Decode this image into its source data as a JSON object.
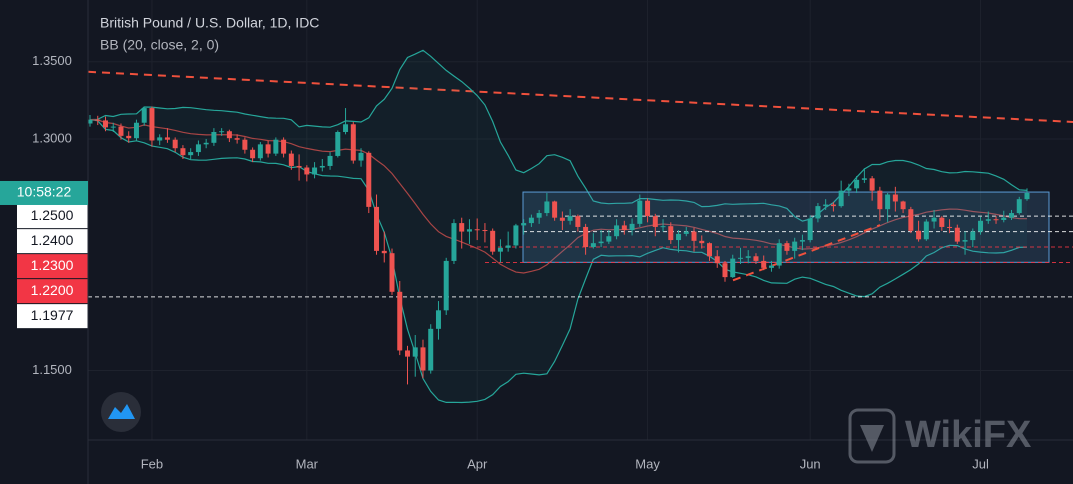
{
  "chart_data": {
    "type": "candlestick",
    "title": "British Pound / U.S. Dollar, 1D, IDC",
    "subtitle": "BB (20, close, 2, 0)",
    "bb_period": 20,
    "bb_mult": 2,
    "up_color": "#26a69a",
    "down_color": "#ef5350",
    "band_color": "#26a69a",
    "basis_color": "#a84545",
    "categories": [
      null,
      null,
      null,
      null,
      null,
      null,
      null,
      null,
      "Feb",
      null,
      null,
      null,
      null,
      null,
      null,
      null,
      null,
      null,
      null,
      null,
      null,
      null,
      null,
      null,
      null,
      null,
      null,
      null,
      "Mar",
      null,
      null,
      null,
      null,
      null,
      null,
      null,
      null,
      null,
      null,
      null,
      null,
      null,
      null,
      null,
      null,
      null,
      null,
      null,
      null,
      null,
      "Apr",
      null,
      null,
      null,
      null,
      null,
      null,
      null,
      null,
      null,
      null,
      null,
      null,
      null,
      null,
      null,
      null,
      null,
      null,
      null,
      null,
      null,
      "May",
      null,
      null,
      null,
      null,
      null,
      null,
      null,
      null,
      null,
      null,
      null,
      null,
      null,
      null,
      null,
      null,
      null,
      null,
      null,
      null,
      "Jun",
      null,
      null,
      null,
      null,
      null,
      null,
      null,
      null,
      null,
      null,
      null,
      null,
      null,
      null,
      null,
      null,
      null,
      null,
      null,
      null,
      null,
      "Jul",
      null,
      null,
      null,
      null,
      null,
      null
    ],
    "candles": [
      [
        1.31,
        1.3155,
        1.308,
        1.3125
      ],
      [
        1.3125,
        1.315,
        1.309,
        1.312
      ],
      [
        1.312,
        1.3145,
        1.305,
        1.3075
      ],
      [
        1.3075,
        1.3105,
        1.3045,
        1.308
      ],
      [
        1.308,
        1.31,
        1.2995,
        1.302
      ],
      [
        1.302,
        1.305,
        1.2975,
        1.3005
      ],
      [
        1.3005,
        1.3125,
        1.2985,
        1.3105
      ],
      [
        1.3105,
        1.321,
        1.3085,
        1.32
      ],
      [
        1.32,
        1.321,
        1.295,
        1.299
      ],
      [
        1.299,
        1.303,
        1.296,
        1.301
      ],
      [
        1.301,
        1.307,
        1.2975,
        1.2995
      ],
      [
        1.2995,
        1.301,
        1.2915,
        1.294
      ],
      [
        1.294,
        1.296,
        1.287,
        1.2895
      ],
      [
        1.2895,
        1.294,
        1.287,
        1.2915
      ],
      [
        1.2915,
        1.299,
        1.289,
        1.2965
      ],
      [
        1.2965,
        1.3,
        1.294,
        1.2975
      ],
      [
        1.2975,
        1.307,
        1.2955,
        1.3045
      ],
      [
        1.3045,
        1.307,
        1.302,
        1.305
      ],
      [
        1.305,
        1.306,
        1.298,
        1.3005
      ],
      [
        1.3005,
        1.303,
        1.297,
        1.2995
      ],
      [
        1.2995,
        1.301,
        1.2905,
        1.293
      ],
      [
        1.293,
        1.2945,
        1.285,
        1.2875
      ],
      [
        1.2875,
        1.298,
        1.286,
        1.2965
      ],
      [
        1.2965,
        1.299,
        1.288,
        1.2905
      ],
      [
        1.2905,
        1.301,
        1.289,
        1.2995
      ],
      [
        1.2995,
        1.301,
        1.288,
        1.2905
      ],
      [
        1.2905,
        1.2925,
        1.28,
        1.2825
      ],
      [
        1.2825,
        1.29,
        1.273,
        1.2815
      ],
      [
        1.2815,
        1.283,
        1.2725,
        1.277
      ],
      [
        1.277,
        1.285,
        1.2745,
        1.2815
      ],
      [
        1.2815,
        1.287,
        1.279,
        1.2825
      ],
      [
        1.2825,
        1.2915,
        1.28,
        1.289
      ],
      [
        1.289,
        1.3055,
        1.288,
        1.3045
      ],
      [
        1.3045,
        1.32,
        1.303,
        1.3095
      ],
      [
        1.3095,
        1.311,
        1.284,
        1.286
      ],
      [
        1.286,
        1.294,
        1.282,
        1.291
      ],
      [
        1.291,
        1.292,
        1.252,
        1.256
      ],
      [
        1.256,
        1.264,
        1.225,
        1.2275
      ],
      [
        1.2275,
        1.24,
        1.22,
        1.226
      ],
      [
        1.226,
        1.229,
        1.199,
        1.201
      ],
      [
        1.201,
        1.208,
        1.16,
        1.163
      ],
      [
        1.163,
        1.166,
        1.141,
        1.159
      ],
      [
        1.159,
        1.173,
        1.146,
        1.165
      ],
      [
        1.165,
        1.17,
        1.145,
        1.15
      ],
      [
        1.15,
        1.18,
        1.148,
        1.177
      ],
      [
        1.177,
        1.195,
        1.17,
        1.189
      ],
      [
        1.189,
        1.223,
        1.186,
        1.221
      ],
      [
        1.221,
        1.248,
        1.219,
        1.2455
      ],
      [
        1.2455,
        1.249,
        1.229,
        1.24
      ],
      [
        1.24,
        1.248,
        1.232,
        1.2415
      ],
      [
        1.2415,
        1.2485,
        1.2345,
        1.241
      ],
      [
        1.241,
        1.2455,
        1.233,
        1.2405
      ],
      [
        1.2405,
        1.242,
        1.225,
        1.227
      ],
      [
        1.227,
        1.235,
        1.22,
        1.2295
      ],
      [
        1.2295,
        1.24,
        1.227,
        1.231
      ],
      [
        1.231,
        1.245,
        1.229,
        1.244
      ],
      [
        1.244,
        1.248,
        1.238,
        1.2455
      ],
      [
        1.2455,
        1.251,
        1.243,
        1.249
      ],
      [
        1.249,
        1.254,
        1.245,
        1.252
      ],
      [
        1.252,
        1.265,
        1.25,
        1.2595
      ],
      [
        1.2595,
        1.26,
        1.247,
        1.249
      ],
      [
        1.249,
        1.253,
        1.241,
        1.247
      ],
      [
        1.247,
        1.2545,
        1.2445,
        1.25
      ],
      [
        1.25,
        1.251,
        1.24,
        1.243
      ],
      [
        1.243,
        1.245,
        1.225,
        1.23
      ],
      [
        1.23,
        1.239,
        1.229,
        1.2325
      ],
      [
        1.2325,
        1.241,
        1.23,
        1.2335
      ],
      [
        1.2335,
        1.241,
        1.232,
        1.237
      ],
      [
        1.237,
        1.248,
        1.235,
        1.244
      ],
      [
        1.244,
        1.247,
        1.238,
        1.241
      ],
      [
        1.241,
        1.2485,
        1.2375,
        1.245
      ],
      [
        1.245,
        1.264,
        1.243,
        1.26
      ],
      [
        1.26,
        1.2615,
        1.246,
        1.25
      ],
      [
        1.25,
        1.2515,
        1.237,
        1.243
      ],
      [
        1.243,
        1.248,
        1.24,
        1.2435
      ],
      [
        1.2435,
        1.246,
        1.232,
        1.2345
      ],
      [
        1.2345,
        1.241,
        1.2265,
        1.2385
      ],
      [
        1.2385,
        1.243,
        1.237,
        1.24
      ],
      [
        1.24,
        1.2425,
        1.227,
        1.234
      ],
      [
        1.234,
        1.2375,
        1.229,
        1.2325
      ],
      [
        1.2325,
        1.233,
        1.221,
        1.224
      ],
      [
        1.224,
        1.228,
        1.2165,
        1.2195
      ],
      [
        1.2195,
        1.221,
        1.2075,
        1.2105
      ],
      [
        1.2105,
        1.225,
        1.21,
        1.2225
      ],
      [
        1.2225,
        1.2295,
        1.219,
        1.223
      ],
      [
        1.223,
        1.228,
        1.2195,
        1.224
      ],
      [
        1.224,
        1.226,
        1.219,
        1.221
      ],
      [
        1.221,
        1.2245,
        1.215,
        1.2165
      ],
      [
        1.2165,
        1.221,
        1.214,
        1.218
      ],
      [
        1.218,
        1.235,
        1.216,
        1.2325
      ],
      [
        1.2325,
        1.234,
        1.225,
        1.2275
      ],
      [
        1.2275,
        1.236,
        1.2225,
        1.2335
      ],
      [
        1.2335,
        1.238,
        1.228,
        1.2345
      ],
      [
        1.2345,
        1.2505,
        1.233,
        1.2485
      ],
      [
        1.2485,
        1.2585,
        1.246,
        1.2565
      ],
      [
        1.2565,
        1.261,
        1.254,
        1.2575
      ],
      [
        1.2575,
        1.259,
        1.253,
        1.2565
      ],
      [
        1.2565,
        1.273,
        1.2555,
        1.2665
      ],
      [
        1.2665,
        1.271,
        1.263,
        1.268
      ],
      [
        1.268,
        1.276,
        1.265,
        1.2735
      ],
      [
        1.2735,
        1.281,
        1.2715,
        1.2745
      ],
      [
        1.2745,
        1.276,
        1.26,
        1.2665
      ],
      [
        1.2665,
        1.269,
        1.247,
        1.2545
      ],
      [
        1.2545,
        1.265,
        1.246,
        1.264
      ],
      [
        1.264,
        1.269,
        1.253,
        1.2595
      ],
      [
        1.2595,
        1.26,
        1.252,
        1.2545
      ],
      [
        1.2545,
        1.256,
        1.239,
        1.2405
      ],
      [
        1.2405,
        1.247,
        1.2335,
        1.235
      ],
      [
        1.235,
        1.248,
        1.234,
        1.2465
      ],
      [
        1.2465,
        1.254,
        1.242,
        1.249
      ],
      [
        1.249,
        1.25,
        1.2405,
        1.243
      ],
      [
        1.243,
        1.248,
        1.239,
        1.2425
      ],
      [
        1.2425,
        1.2445,
        1.232,
        1.2335
      ],
      [
        1.2335,
        1.24,
        1.225,
        1.2345
      ],
      [
        1.2345,
        1.242,
        1.23,
        1.24
      ],
      [
        1.24,
        1.2495,
        1.238,
        1.247
      ],
      [
        1.247,
        1.253,
        1.245,
        1.248
      ],
      [
        1.248,
        1.25,
        1.245,
        1.2475
      ],
      [
        1.2475,
        1.2535,
        1.246,
        1.249
      ],
      [
        1.249,
        1.254,
        1.2475,
        1.252
      ],
      [
        1.252,
        1.2625,
        1.251,
        1.261
      ],
      [
        1.261,
        1.268,
        1.26,
        1.265
      ]
    ],
    "ylim": [
      1.105,
      1.39
    ],
    "yticks": [
      {
        "value": 1.35,
        "label": "1.3500"
      },
      {
        "value": 1.3,
        "label": "1.3000"
      },
      {
        "value": 1.15,
        "label": "1.1500"
      }
    ],
    "grid": true,
    "last_price": 1.265,
    "countdown": "10:58:22",
    "levels": [
      {
        "value": 1.25,
        "label": "1.2500",
        "color": "#ffffff"
      },
      {
        "value": 1.24,
        "label": "1.2400",
        "color": "#ffffff"
      },
      {
        "value": 1.23,
        "label": "1.2300",
        "color": "#f23645"
      },
      {
        "value": 1.22,
        "label": "1.2200",
        "color": "#f23645"
      },
      {
        "value": 1.1977,
        "label": "1.1977",
        "color": "#ffffff"
      }
    ],
    "box": {
      "top": 1.2656,
      "bottom": 1.2201,
      "color": "#5b9bd5"
    },
    "trendline": {
      "start": 1.3435,
      "end": 1.311,
      "color": "#f0513d"
    },
    "support_line": {
      "start": 1.2084,
      "end": 1.2442,
      "color": "#f0513d"
    },
    "watermark": "WikiFX"
  }
}
